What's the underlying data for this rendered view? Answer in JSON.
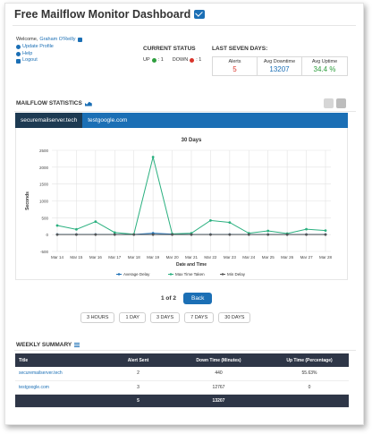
{
  "page": {
    "title": "Free Mailflow Monitor Dashboard"
  },
  "user": {
    "welcome": "Welcome,",
    "name": "Graham O'Reilly",
    "links": [
      "Update Profile",
      "Help",
      "Logout"
    ]
  },
  "current_status": {
    "heading": "CURRENT STATUS",
    "up_label": "UP",
    "up_value": ": 1",
    "down_label": "DOWN",
    "down_value": ": 1",
    "up_color": "#2e9e3e",
    "down_color": "#d9342b"
  },
  "last_seven_days": {
    "heading": "LAST SEVEN DAYS:",
    "alerts_label": "Alerts",
    "alerts_value": "5",
    "downtime_label": "Avg Downtime",
    "downtime_value": "13207",
    "uptime_label": "Avg Uptime",
    "uptime_value": "34.4 %",
    "alerts_color": "#d9342b",
    "downtime_color": "#1b6fb5",
    "uptime_color": "#2e9e3e"
  },
  "statistics": {
    "heading": "MAILFLOW STATISTICS",
    "tabs": [
      "securemailserver.tech",
      "testgoogle.com"
    ],
    "active_tab": 0
  },
  "chart_data": {
    "type": "line",
    "title": "30 Days",
    "xlabel": "Date and Time",
    "ylabel": "Seconds",
    "categories": [
      "Mar 14",
      "Mar 15",
      "Mar 16",
      "Mar 17",
      "Mar 18",
      "Mar 19",
      "Mar 20",
      "Mar 21",
      "Mar 22",
      "Mar 23",
      "Mar 24",
      "Mar 25",
      "Mar 26",
      "Mar 27",
      "Mar 28"
    ],
    "ylim": [
      -500,
      2500
    ],
    "yticks": [
      -500,
      0,
      500,
      1000,
      1500,
      2000,
      2500
    ],
    "grid": true,
    "legend": "bottom",
    "series": [
      {
        "name": "Average Delay",
        "color": "#1b6fb5",
        "marker": "circle",
        "values": [
          5,
          5,
          5,
          5,
          5,
          40,
          15,
          5,
          5,
          5,
          5,
          5,
          5,
          5,
          5
        ]
      },
      {
        "name": "Max Time Taken",
        "color": "#2ab07f",
        "marker": "circle",
        "values": [
          270,
          155,
          385,
          60,
          10,
          2300,
          20,
          40,
          420,
          360,
          40,
          110,
          30,
          160,
          120
        ]
      },
      {
        "name": "Min Delay",
        "color": "#555555",
        "marker": "circle",
        "values": [
          0,
          0,
          0,
          0,
          0,
          0,
          0,
          0,
          0,
          0,
          0,
          0,
          0,
          0,
          0
        ]
      }
    ]
  },
  "pager": {
    "text": "1 of 2",
    "back_label": "Back"
  },
  "ranges": [
    "3 HOURS",
    "1 DAY",
    "3 DAYS",
    "7 DAYS",
    "30 DAYS"
  ],
  "weekly_summary": {
    "heading": "WEEKLY SUMMARY",
    "columns": [
      "Title",
      "Alert Sent",
      "Down Time (Minutes)",
      "Up Time (Percentage)"
    ],
    "rows": [
      {
        "title": "securemailserver.tech",
        "alerts": "2",
        "downtime": "440",
        "uptime": "55.63%"
      },
      {
        "title": "testgoogle.com",
        "alerts": "3",
        "downtime": "12767",
        "uptime": "0"
      }
    ],
    "total": {
      "title": "",
      "alerts": "5",
      "downtime": "13207",
      "uptime": ""
    }
  }
}
